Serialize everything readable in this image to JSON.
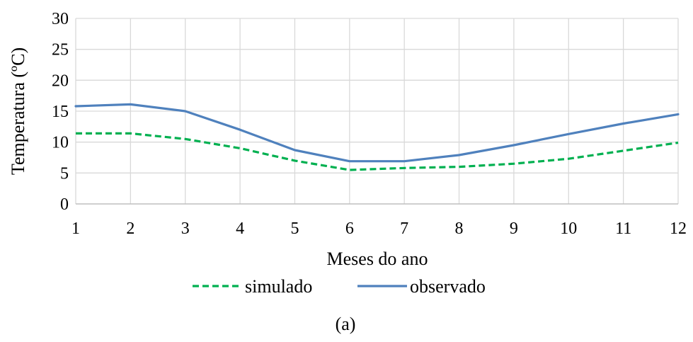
{
  "chart_data": {
    "type": "line",
    "x": [
      1,
      2,
      3,
      4,
      5,
      6,
      7,
      8,
      9,
      10,
      11,
      12
    ],
    "series": [
      {
        "name": "simulado",
        "values": [
          11.4,
          11.4,
          10.5,
          9.0,
          7.0,
          5.5,
          5.8,
          6.0,
          6.5,
          7.3,
          8.6,
          9.9
        ],
        "color": "#00b050",
        "style": "dashed"
      },
      {
        "name": "observado",
        "values": [
          15.8,
          16.1,
          15.0,
          12.0,
          8.7,
          6.9,
          6.9,
          7.9,
          9.5,
          11.3,
          13.0,
          14.5
        ],
        "color": "#4f81bd",
        "style": "solid"
      }
    ],
    "title": "",
    "xlabel": "Meses do ano",
    "ylabel": "Temperatura  (ºC)",
    "xlim": [
      1,
      12
    ],
    "ylim": [
      0,
      30
    ],
    "yticks": [
      0,
      5,
      10,
      15,
      20,
      25,
      30
    ],
    "xticks": [
      1,
      2,
      3,
      4,
      5,
      6,
      7,
      8,
      9,
      10,
      11,
      12
    ],
    "grid": true,
    "legend": "bottom",
    "caption": "(a)",
    "colors": {
      "grid": "#d9d9d9",
      "axis": "#bfbfbf"
    }
  }
}
